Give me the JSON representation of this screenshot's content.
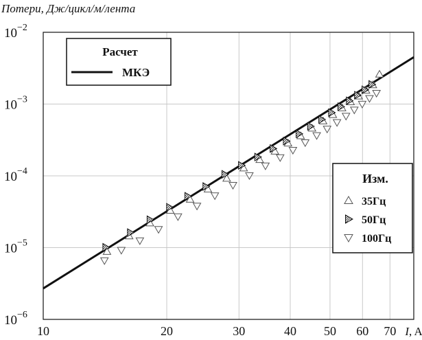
{
  "chart_data": {
    "type": "scatter",
    "ylabel": "Потери, Дж/цикл/м/лента",
    "xlabel_var": "I",
    "xlabel_unit": ", A",
    "xscale": "log",
    "yscale": "log",
    "xlim": [
      10,
      80
    ],
    "ylim": [
      1e-06,
      0.01
    ],
    "grid": true,
    "x_ticks": [
      10,
      20,
      30,
      40,
      50,
      60,
      70
    ],
    "y_tick_exponents": [
      "-6",
      "-5",
      "-4",
      "-3",
      "-2"
    ],
    "y_tick_base": "10",
    "legend_calc": {
      "title": "Расчет",
      "label": "МКЭ",
      "placement": "top-left"
    },
    "legend_meas": {
      "title": "Изм.",
      "placement": "right"
    },
    "series": [
      {
        "name": "МКЭ",
        "kind": "line",
        "color": "#111111",
        "x": [
          10,
          80
        ],
        "y": [
          2.7e-06,
          0.0045
        ]
      },
      {
        "name": "35Гц",
        "kind": "marker",
        "marker": "triangle-up-open",
        "x": [
          14.3,
          16.2,
          18.2,
          20.4,
          22.8,
          25.2,
          28,
          30.8,
          33.7,
          36.7,
          39.5,
          42.4,
          45.2,
          48.1,
          50.8,
          53.5,
          56.1,
          58.7,
          61.2,
          63.6,
          66.0
        ],
        "y": [
          8.8e-06,
          1.45e-05,
          2.2e-05,
          3.3e-05,
          4.7e-05,
          6.5e-05,
          9.2e-05,
          0.000128,
          0.000168,
          0.00022,
          0.000285,
          0.00036,
          0.00046,
          0.00058,
          0.00071,
          0.00088,
          0.00107,
          0.00129,
          0.00155,
          0.00185,
          0.0026
        ]
      },
      {
        "name": "50Гц",
        "kind": "marker",
        "marker": "triangle-right-hatched",
        "x": [
          14.2,
          16.3,
          18.2,
          20.3,
          22.5,
          24.9,
          27.7,
          30.4,
          33.3,
          36.3,
          39.1,
          42.0,
          44.8,
          47.7,
          50.4,
          53.1,
          55.7,
          58.3,
          60.8,
          63.2
        ],
        "y": [
          1.01e-05,
          1.62e-05,
          2.45e-05,
          3.65e-05,
          5.2e-05,
          7.1e-05,
          0.000105,
          0.00014,
          0.000183,
          0.00024,
          0.000305,
          0.000385,
          0.00049,
          0.00061,
          0.00076,
          0.00092,
          0.00111,
          0.00133,
          0.00158,
          0.00188
        ]
      },
      {
        "name": "100Гц",
        "kind": "marker",
        "marker": "triangle-down-open",
        "x": [
          14.1,
          15.5,
          17.2,
          19.1,
          21.3,
          23.7,
          26.2,
          29.0,
          31.8,
          34.8,
          37.8,
          40.6,
          43.5,
          46.4,
          49.2,
          52.0,
          54.7,
          57.3,
          59.9,
          62.4,
          64.9
        ],
        "y": [
          6.6e-06,
          9.2e-06,
          1.25e-05,
          1.8e-05,
          2.7e-05,
          3.8e-05,
          5.3e-05,
          7.4e-05,
          0.000101,
          0.000138,
          0.00018,
          0.000228,
          0.00029,
          0.000365,
          0.00045,
          0.000555,
          0.00068,
          0.00083,
          0.001,
          0.0012,
          0.00142
        ]
      }
    ]
  }
}
